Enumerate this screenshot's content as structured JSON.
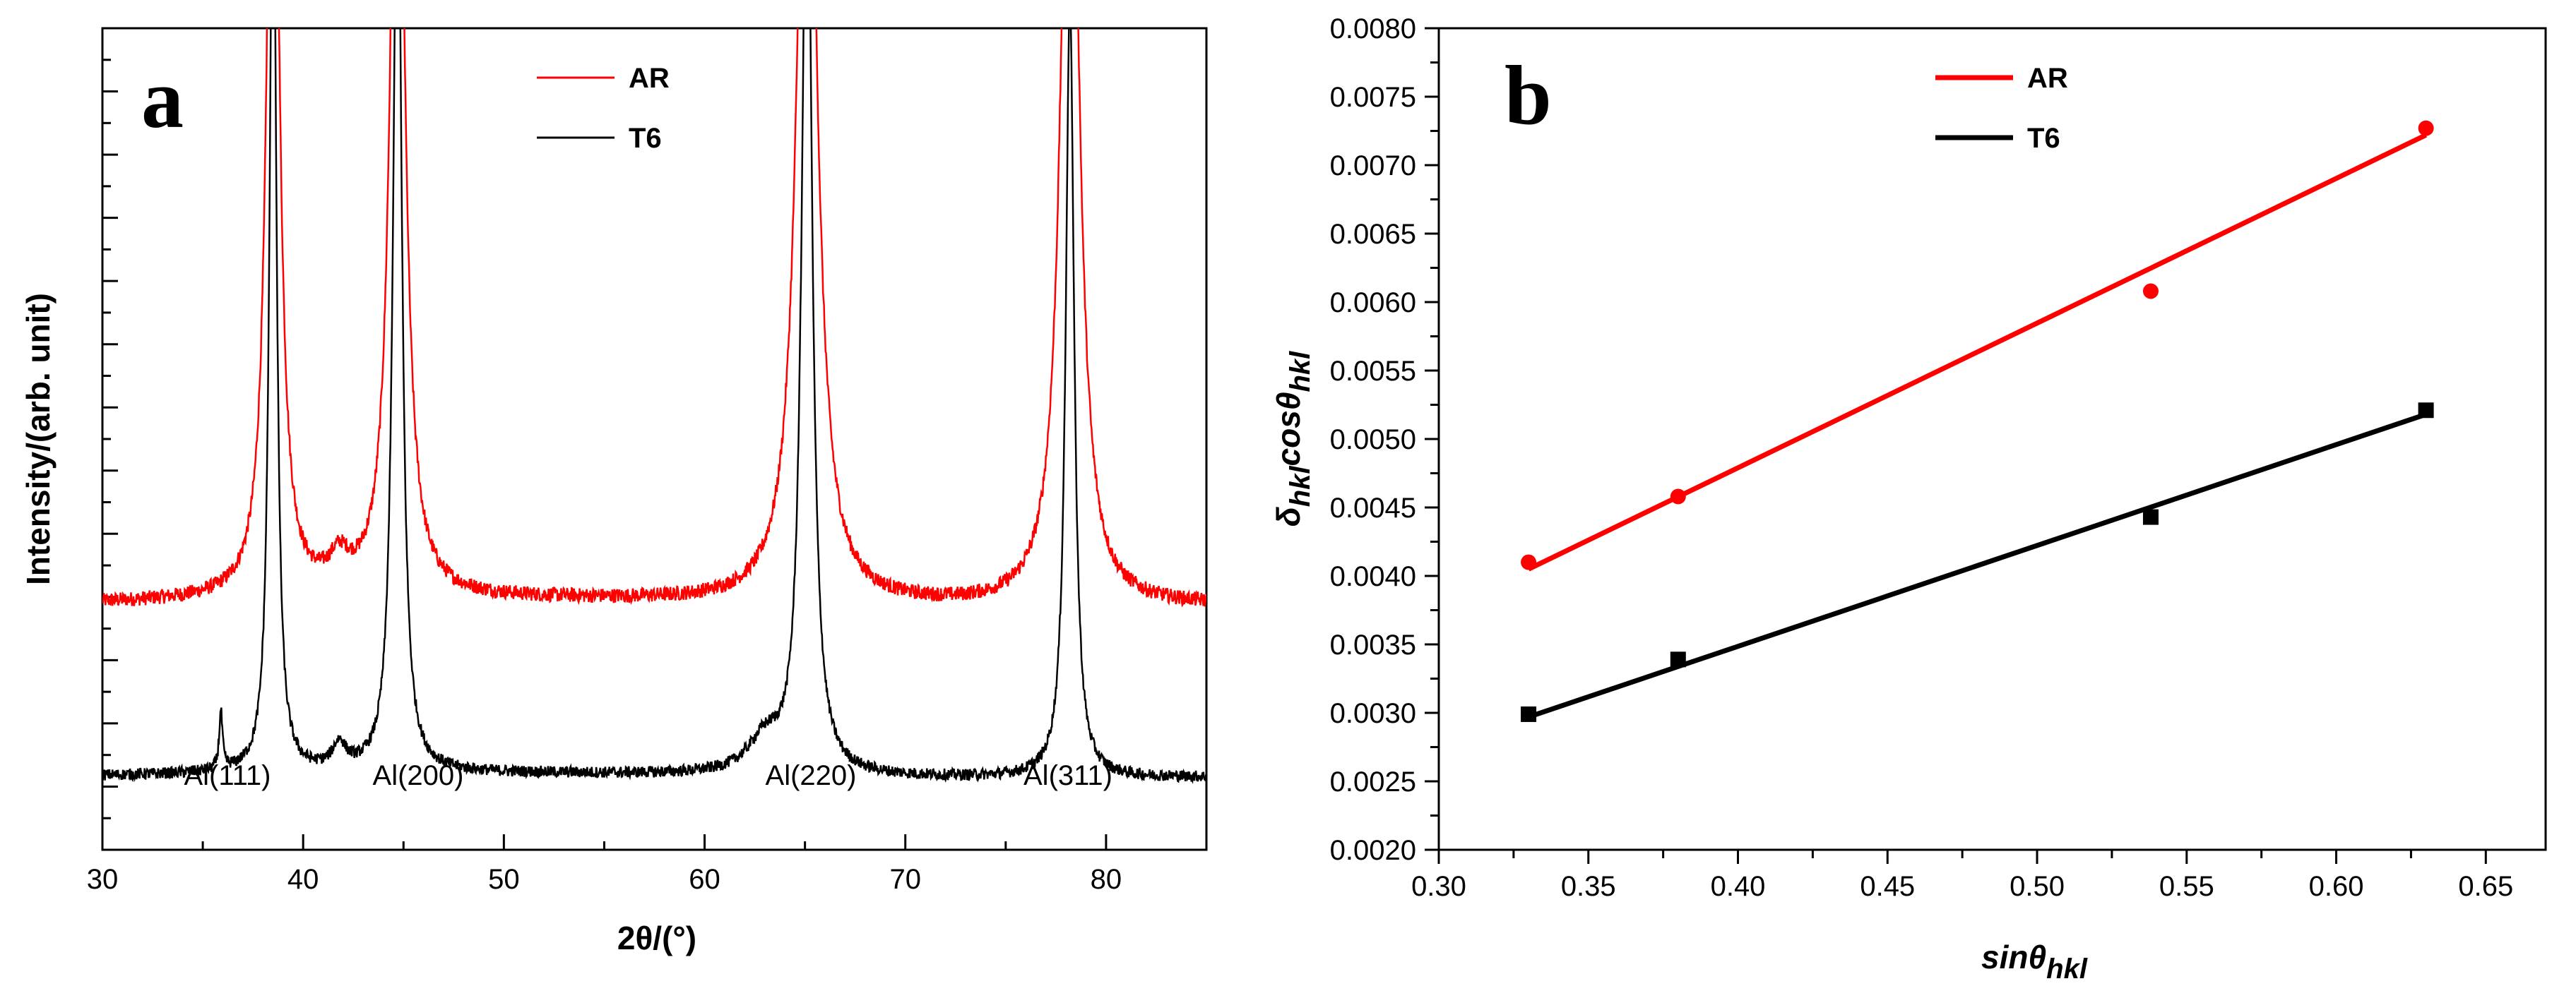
{
  "chart_data": [
    {
      "panel": "a",
      "type": "line",
      "xlabel": "2θ/(°)",
      "ylabel": "Intensity/(arb. unit)",
      "xlim": [
        30,
        85
      ],
      "xticks": [
        "30",
        "40",
        "50",
        "60",
        "70",
        "80"
      ],
      "ylim": [
        0,
        1
      ],
      "y_tick_labels_shown": false,
      "legend": [
        {
          "name": "AR",
          "color": "#ff0000"
        },
        {
          "name": "T6",
          "color": "#000000"
        }
      ],
      "peak_labels": [
        {
          "text": "Al(111)",
          "x": 38.5
        },
        {
          "text": "Al(200)",
          "x": 44.7
        },
        {
          "text": "Al(220)",
          "x": 65.1
        },
        {
          "text": "Al(311)",
          "x": 78.2
        }
      ],
      "series": [
        {
          "name": "AR",
          "color": "#ff0000",
          "baseline": 0.3,
          "peaks": [
            {
              "x": 38.5,
              "height": 1.2,
              "width": 0.35
            },
            {
              "x": 41.8,
              "height": 0.035,
              "width": 0.6
            },
            {
              "x": 44.7,
              "height": 1.2,
              "width": 0.4
            },
            {
              "x": 65.1,
              "height": 1.2,
              "width": 0.55
            },
            {
              "x": 78.2,
              "height": 1.2,
              "width": 0.5
            }
          ]
        },
        {
          "name": "T6",
          "color": "#000000",
          "baseline": 0.09,
          "peaks": [
            {
              "x": 35.9,
              "height": 0.07,
              "width": 0.1
            },
            {
              "x": 38.5,
              "height": 1.2,
              "width": 0.2
            },
            {
              "x": 41.8,
              "height": 0.03,
              "width": 0.4
            },
            {
              "x": 44.7,
              "height": 1.2,
              "width": 0.25
            },
            {
              "x": 63.0,
              "height": 0.04,
              "width": 1.0
            },
            {
              "x": 65.1,
              "height": 1.2,
              "width": 0.3
            },
            {
              "x": 78.2,
              "height": 0.95,
              "width": 0.25
            }
          ]
        }
      ]
    },
    {
      "panel": "b",
      "type": "scatter",
      "xlabel": "sinθ",
      "xlabel_sub": "hkl",
      "ylabel_parts": [
        "δ",
        "hkl",
        "cosθ",
        "hkl"
      ],
      "xlim": [
        0.3,
        0.67
      ],
      "ylim": [
        0.002,
        0.008
      ],
      "xticks": [
        "0.30",
        "0.35",
        "0.40",
        "0.45",
        "0.50",
        "0.55",
        "0.60",
        "0.65"
      ],
      "yticks": [
        "0.0020",
        "0.0025",
        "0.0030",
        "0.0035",
        "0.0040",
        "0.0045",
        "0.0050",
        "0.0055",
        "0.0060",
        "0.0065",
        "0.0070",
        "0.0075",
        "0.0080"
      ],
      "legend": [
        {
          "name": "AR",
          "color": "#ff0000"
        },
        {
          "name": "T6",
          "color": "#000000"
        }
      ],
      "series": [
        {
          "name": "AR",
          "color": "#ff0000",
          "marker": "circle",
          "x": [
            0.33,
            0.38,
            0.538,
            0.63
          ],
          "y": [
            0.0041,
            0.00458,
            0.00608,
            0.00727
          ],
          "fit": {
            "x": [
              0.33,
              0.63
            ],
            "y": [
              0.00405,
              0.00722
            ]
          }
        },
        {
          "name": "T6",
          "color": "#000000",
          "marker": "square",
          "x": [
            0.33,
            0.38,
            0.538,
            0.63
          ],
          "y": [
            0.00299,
            0.00339,
            0.00443,
            0.00521
          ],
          "fit": {
            "x": [
              0.33,
              0.63
            ],
            "y": [
              0.00297,
              0.00518
            ]
          }
        }
      ]
    }
  ]
}
